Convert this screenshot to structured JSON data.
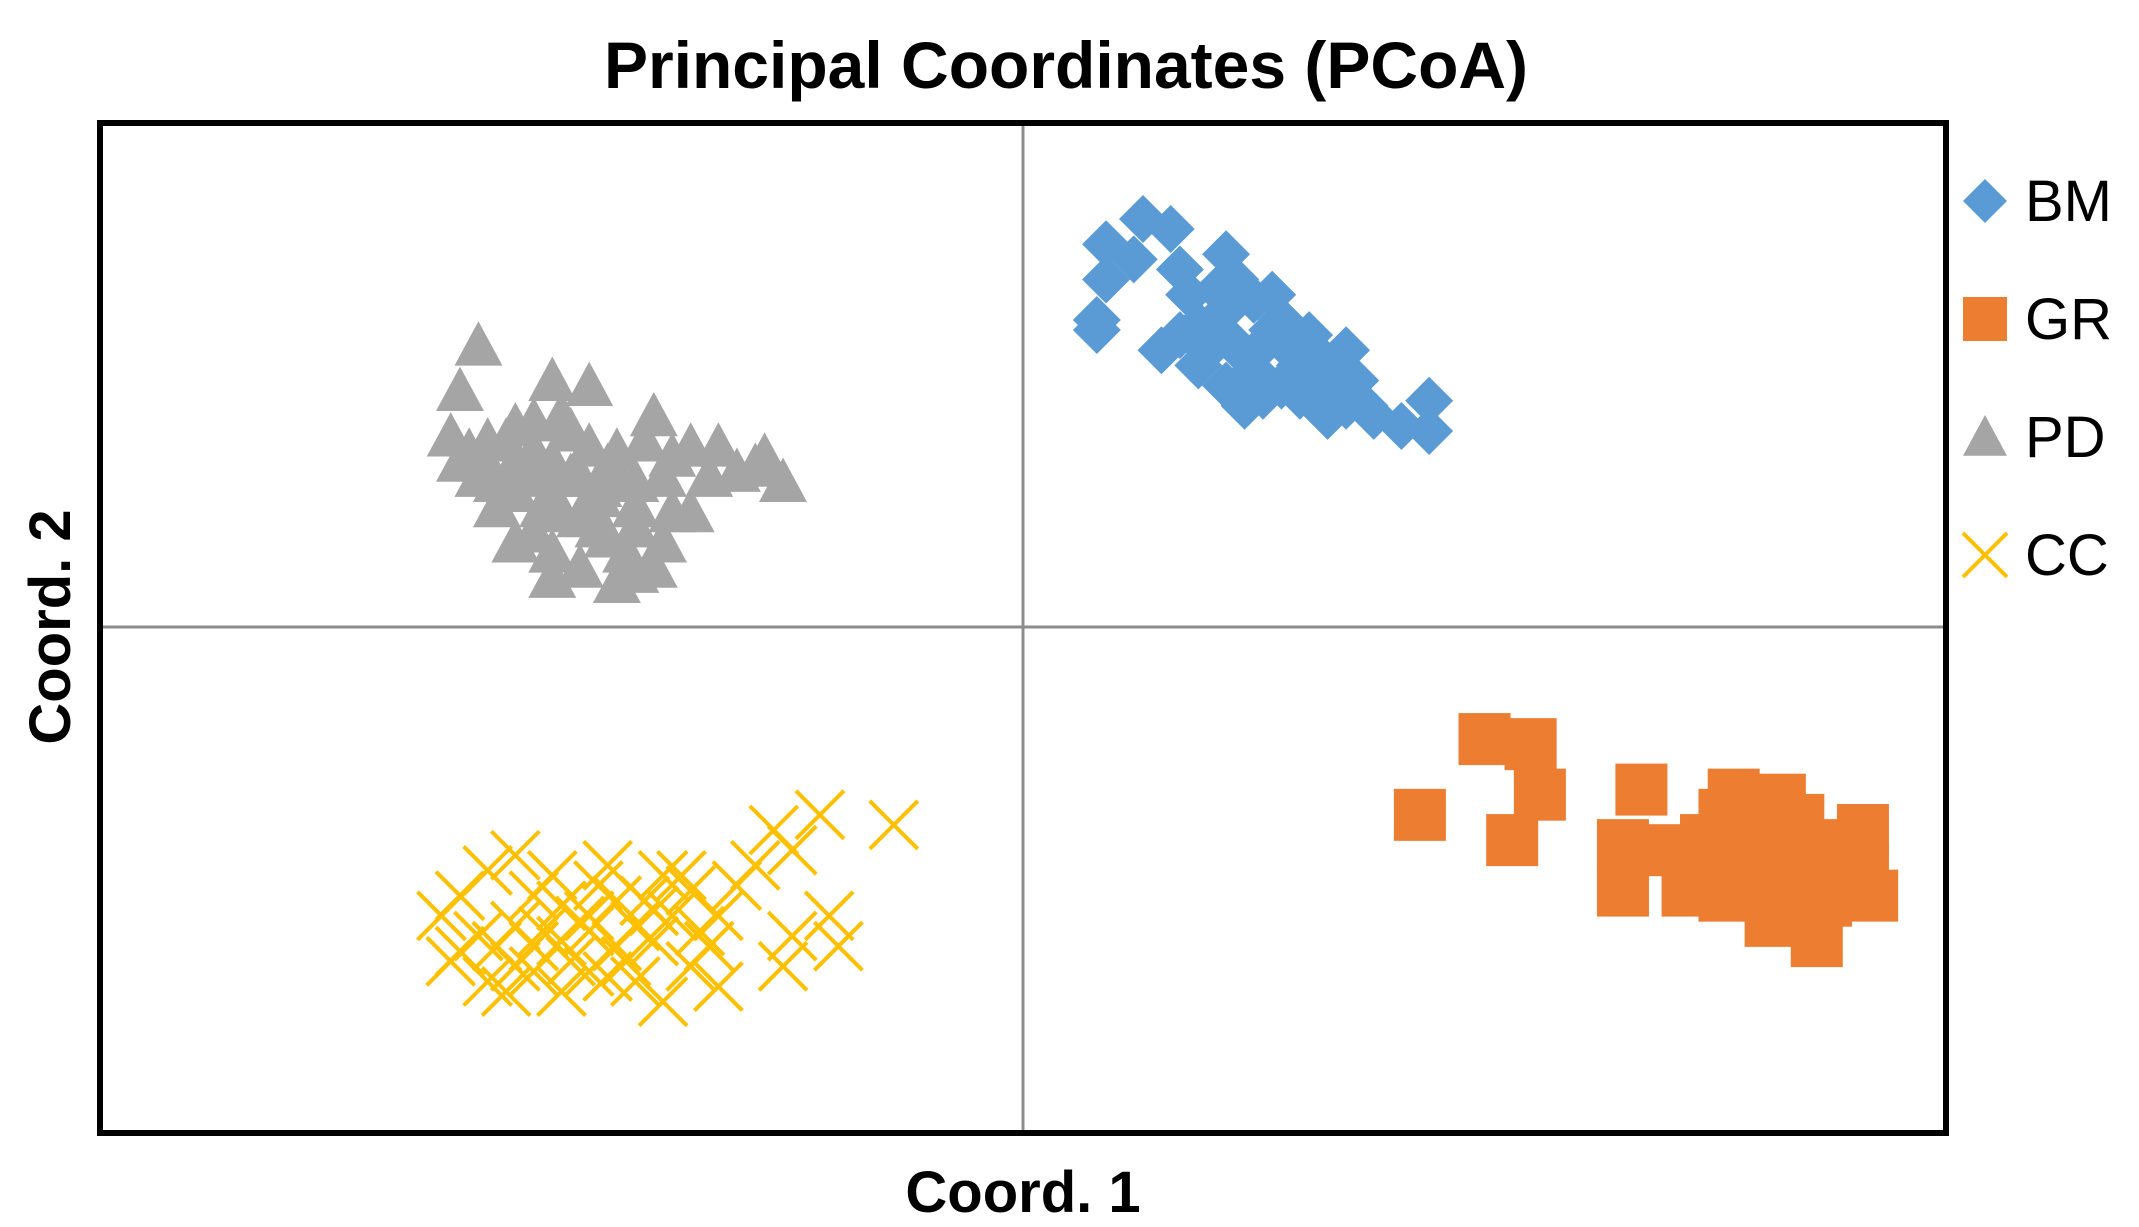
{
  "chart_data": {
    "type": "scatter",
    "title": "Principal Coordinates (PCoA)",
    "xlabel": "Coord. 1",
    "ylabel": "Coord. 2",
    "xlim": [
      -1,
      1
    ],
    "ylim": [
      -1,
      1
    ],
    "grid": false,
    "legend_position": "right",
    "series": [
      {
        "name": "BM",
        "marker": "diamond",
        "color": "#5B9BD5",
        "points": [
          [
            0.13,
            0.81
          ],
          [
            0.16,
            0.79
          ],
          [
            0.09,
            0.76
          ],
          [
            0.12,
            0.73
          ],
          [
            0.09,
            0.69
          ],
          [
            0.08,
            0.59
          ],
          [
            0.08,
            0.61
          ],
          [
            0.17,
            0.71
          ],
          [
            0.18,
            0.66
          ],
          [
            0.19,
            0.6
          ],
          [
            0.21,
            0.67
          ],
          [
            0.23,
            0.69
          ],
          [
            0.22,
            0.63
          ],
          [
            0.21,
            0.57
          ],
          [
            0.23,
            0.56
          ],
          [
            0.24,
            0.54
          ],
          [
            0.2,
            0.55
          ],
          [
            0.19,
            0.52
          ],
          [
            0.22,
            0.48
          ],
          [
            0.25,
            0.51
          ],
          [
            0.26,
            0.56
          ],
          [
            0.27,
            0.59
          ],
          [
            0.28,
            0.61
          ],
          [
            0.29,
            0.55
          ],
          [
            0.3,
            0.52
          ],
          [
            0.31,
            0.58
          ],
          [
            0.29,
            0.49
          ],
          [
            0.31,
            0.46
          ],
          [
            0.33,
            0.5
          ],
          [
            0.32,
            0.54
          ],
          [
            0.34,
            0.46
          ],
          [
            0.35,
            0.44
          ],
          [
            0.36,
            0.49
          ],
          [
            0.37,
            0.44
          ],
          [
            0.26,
            0.46
          ],
          [
            0.24,
            0.44
          ],
          [
            0.28,
            0.48
          ],
          [
            0.33,
            0.42
          ],
          [
            0.3,
            0.46
          ],
          [
            0.38,
            0.42
          ],
          [
            0.41,
            0.4
          ],
          [
            0.44,
            0.45
          ],
          [
            0.44,
            0.39
          ],
          [
            0.15,
            0.55
          ],
          [
            0.17,
            0.58
          ],
          [
            0.22,
            0.74
          ],
          [
            0.25,
            0.65
          ],
          [
            0.27,
            0.66
          ],
          [
            0.35,
            0.55
          ],
          [
            0.32,
            0.48
          ]
        ]
      },
      {
        "name": "GR",
        "marker": "square",
        "color": "#ED7D31",
        "points": [
          [
            0.43,
            -0.37
          ],
          [
            0.5,
            -0.22
          ],
          [
            0.55,
            -0.23
          ],
          [
            0.56,
            -0.33
          ],
          [
            0.53,
            -0.42
          ],
          [
            0.67,
            -0.32
          ],
          [
            0.65,
            -0.43
          ],
          [
            0.65,
            -0.52
          ],
          [
            0.73,
            -0.49
          ],
          [
            0.7,
            -0.44
          ],
          [
            0.77,
            -0.33
          ],
          [
            0.78,
            -0.41
          ],
          [
            0.79,
            -0.5
          ],
          [
            0.81,
            -0.58
          ],
          [
            0.82,
            -0.46
          ],
          [
            0.84,
            -0.38
          ],
          [
            0.83,
            -0.52
          ],
          [
            0.86,
            -0.45
          ],
          [
            0.87,
            -0.54
          ],
          [
            0.79,
            -0.44
          ],
          [
            0.74,
            -0.42
          ],
          [
            0.72,
            -0.52
          ],
          [
            0.81,
            -0.43
          ],
          [
            0.76,
            -0.53
          ],
          [
            0.84,
            -0.49
          ],
          [
            0.89,
            -0.43
          ],
          [
            0.76,
            -0.37
          ],
          [
            0.8,
            -0.35
          ],
          [
            0.88,
            -0.49
          ],
          [
            0.85,
            -0.56
          ],
          [
            0.73,
            -0.47
          ],
          [
            0.78,
            -0.46
          ],
          [
            0.91,
            -0.4
          ],
          [
            0.91,
            -0.48
          ],
          [
            0.92,
            -0.53
          ],
          [
            0.82,
            -0.34
          ],
          [
            0.86,
            -0.62
          ]
        ]
      },
      {
        "name": "PD",
        "marker": "triangle",
        "color": "#A5A5A5",
        "points": [
          [
            -0.59,
            0.56
          ],
          [
            -0.61,
            0.47
          ],
          [
            -0.51,
            0.49
          ],
          [
            -0.47,
            0.48
          ],
          [
            -0.56,
            0.37
          ],
          [
            -0.58,
            0.32
          ],
          [
            -0.53,
            0.41
          ],
          [
            -0.49,
            0.39
          ],
          [
            -0.51,
            0.33
          ],
          [
            -0.5,
            0.42
          ],
          [
            -0.47,
            0.36
          ],
          [
            -0.45,
            0.32
          ],
          [
            -0.53,
            0.3
          ],
          [
            -0.51,
            0.26
          ],
          [
            -0.55,
            0.27
          ],
          [
            -0.57,
            0.29
          ],
          [
            -0.59,
            0.3
          ],
          [
            -0.61,
            0.33
          ],
          [
            -0.62,
            0.38
          ],
          [
            -0.6,
            0.35
          ],
          [
            -0.55,
            0.33
          ],
          [
            -0.53,
            0.35
          ],
          [
            -0.49,
            0.3
          ],
          [
            -0.46,
            0.28
          ],
          [
            -0.44,
            0.3
          ],
          [
            -0.42,
            0.29
          ],
          [
            -0.41,
            0.37
          ],
          [
            -0.39,
            0.3
          ],
          [
            -0.38,
            0.34
          ],
          [
            -0.36,
            0.36
          ],
          [
            -0.34,
            0.3
          ],
          [
            -0.33,
            0.36
          ],
          [
            -0.31,
            0.31
          ],
          [
            -0.29,
            0.32
          ],
          [
            -0.28,
            0.34
          ],
          [
            -0.26,
            0.29
          ],
          [
            -0.38,
            0.23
          ],
          [
            -0.42,
            0.24
          ],
          [
            -0.43,
            0.15
          ],
          [
            -0.45,
            0.18
          ],
          [
            -0.48,
            0.12
          ],
          [
            -0.51,
            0.15
          ],
          [
            -0.55,
            0.17
          ],
          [
            -0.53,
            0.19
          ],
          [
            -0.5,
            0.23
          ],
          [
            -0.46,
            0.2
          ],
          [
            -0.42,
            0.11
          ],
          [
            -0.4,
            0.12
          ],
          [
            -0.36,
            0.23
          ],
          [
            -0.48,
            0.22
          ],
          [
            -0.52,
            0.24
          ],
          [
            -0.57,
            0.24
          ],
          [
            -0.44,
            0.35
          ],
          [
            -0.58,
            0.37
          ],
          [
            -0.4,
            0.42
          ],
          [
            -0.55,
            0.4
          ],
          [
            -0.46,
            0.26
          ],
          [
            -0.42,
            0.2
          ],
          [
            -0.39,
            0.17
          ],
          [
            -0.51,
            0.1
          ],
          [
            -0.44,
            0.09
          ],
          [
            -0.48,
            0.3
          ]
        ]
      },
      {
        "name": "CC",
        "marker": "x",
        "color": "#FFC000",
        "points": [
          [
            -0.55,
            -0.45
          ],
          [
            -0.58,
            -0.48
          ],
          [
            -0.61,
            -0.53
          ],
          [
            -0.63,
            -0.57
          ],
          [
            -0.59,
            -0.61
          ],
          [
            -0.61,
            -0.64
          ],
          [
            -0.57,
            -0.63
          ],
          [
            -0.55,
            -0.59
          ],
          [
            -0.53,
            -0.53
          ],
          [
            -0.51,
            -0.49
          ],
          [
            -0.5,
            -0.55
          ],
          [
            -0.52,
            -0.6
          ],
          [
            -0.55,
            -0.67
          ],
          [
            -0.58,
            -0.7
          ],
          [
            -0.62,
            -0.66
          ],
          [
            -0.56,
            -0.72
          ],
          [
            -0.53,
            -0.68
          ],
          [
            -0.5,
            -0.62
          ],
          [
            -0.48,
            -0.58
          ],
          [
            -0.46,
            -0.51
          ],
          [
            -0.44,
            -0.54
          ],
          [
            -0.47,
            -0.6
          ],
          [
            -0.49,
            -0.66
          ],
          [
            -0.45,
            -0.69
          ],
          [
            -0.5,
            -0.72
          ],
          [
            -0.47,
            -0.68
          ],
          [
            -0.44,
            -0.63
          ],
          [
            -0.42,
            -0.59
          ],
          [
            -0.41,
            -0.54
          ],
          [
            -0.39,
            -0.49
          ],
          [
            -0.36,
            -0.52
          ],
          [
            -0.38,
            -0.57
          ],
          [
            -0.4,
            -0.62
          ],
          [
            -0.42,
            -0.7
          ],
          [
            -0.39,
            -0.74
          ],
          [
            -0.36,
            -0.67
          ],
          [
            -0.35,
            -0.6
          ],
          [
            -0.33,
            -0.57
          ],
          [
            -0.31,
            -0.51
          ],
          [
            -0.29,
            -0.47
          ],
          [
            -0.27,
            -0.4
          ],
          [
            -0.25,
            -0.44
          ],
          [
            -0.22,
            -0.37
          ],
          [
            -0.14,
            -0.39
          ],
          [
            -0.21,
            -0.57
          ],
          [
            -0.25,
            -0.61
          ],
          [
            -0.26,
            -0.67
          ],
          [
            -0.2,
            -0.63
          ],
          [
            -0.37,
            -0.49
          ],
          [
            -0.34,
            -0.63
          ],
          [
            -0.47,
            -0.57
          ],
          [
            -0.43,
            -0.66
          ],
          [
            -0.33,
            -0.71
          ],
          [
            -0.4,
            -0.56
          ],
          [
            -0.53,
            -0.63
          ],
          [
            -0.45,
            -0.47
          ]
        ]
      }
    ]
  }
}
